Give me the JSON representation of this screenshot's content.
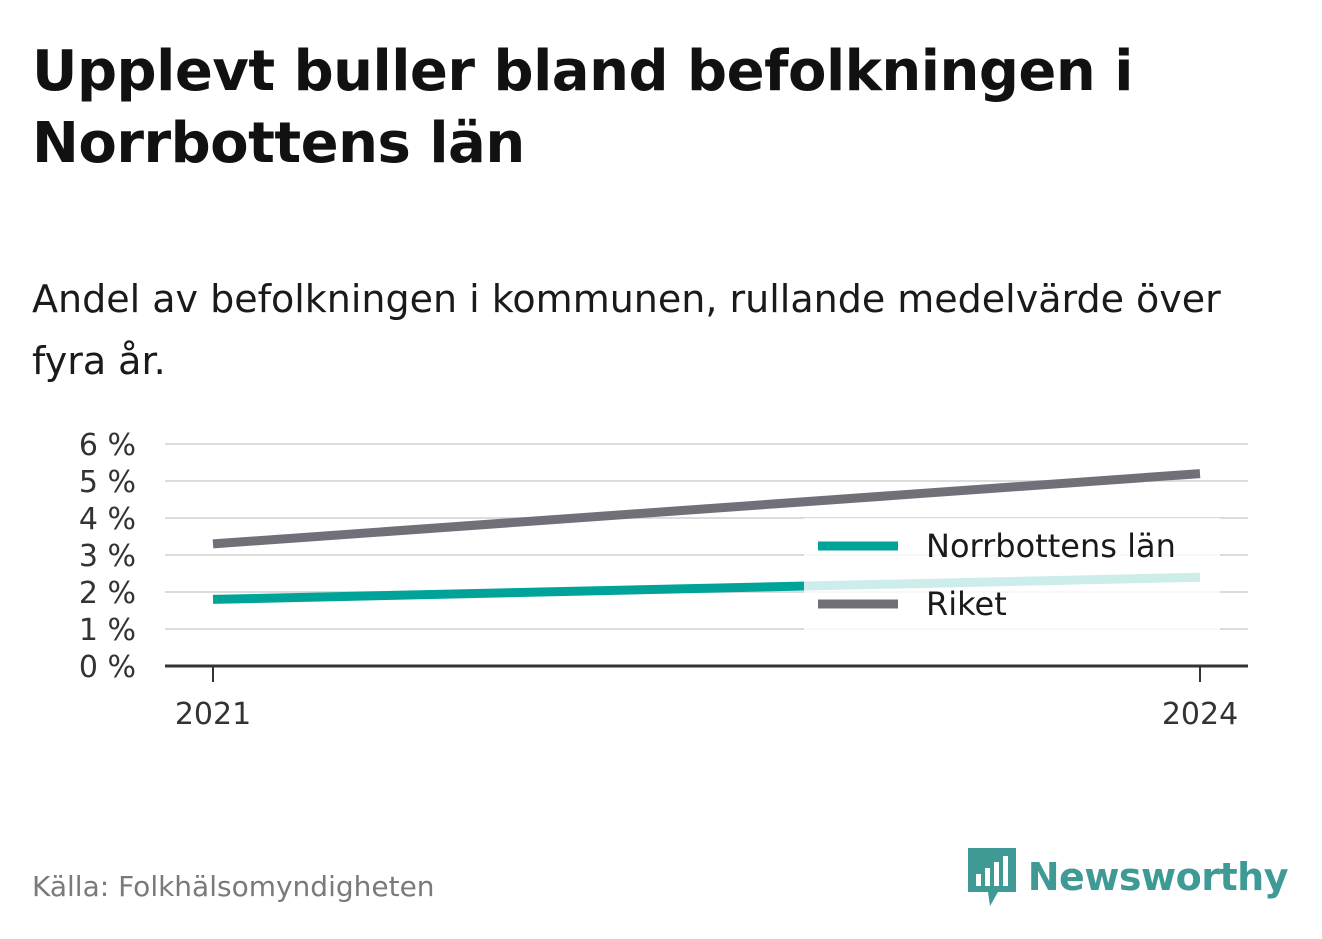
{
  "title": "Upplevt buller bland befolkningen i Norrbottens län",
  "subtitle": "Andel av befolkningen i kommunen, rullande medelvärde över fyra år.",
  "source": "Källa: Folkhälsomyndigheten",
  "brand": {
    "name": "Newsworthy",
    "icon": "newsworthy-logo-icon",
    "color": "#3f9a95"
  },
  "chart_data": {
    "type": "line",
    "x": [
      "2021",
      "2024"
    ],
    "xlabel": "",
    "ylabel": "",
    "ylim": [
      0,
      6
    ],
    "y_ticks": [
      "0 %",
      "1 %",
      "2 %",
      "3 %",
      "4 %",
      "5 %",
      "6 %"
    ],
    "grid": true,
    "legend_position": "right",
    "series": [
      {
        "name": "Norrbottens län",
        "values": [
          1.8,
          2.4
        ],
        "color": "#00a398"
      },
      {
        "name": "Riket",
        "values": [
          3.3,
          5.2
        ],
        "color": "#717078"
      }
    ]
  }
}
